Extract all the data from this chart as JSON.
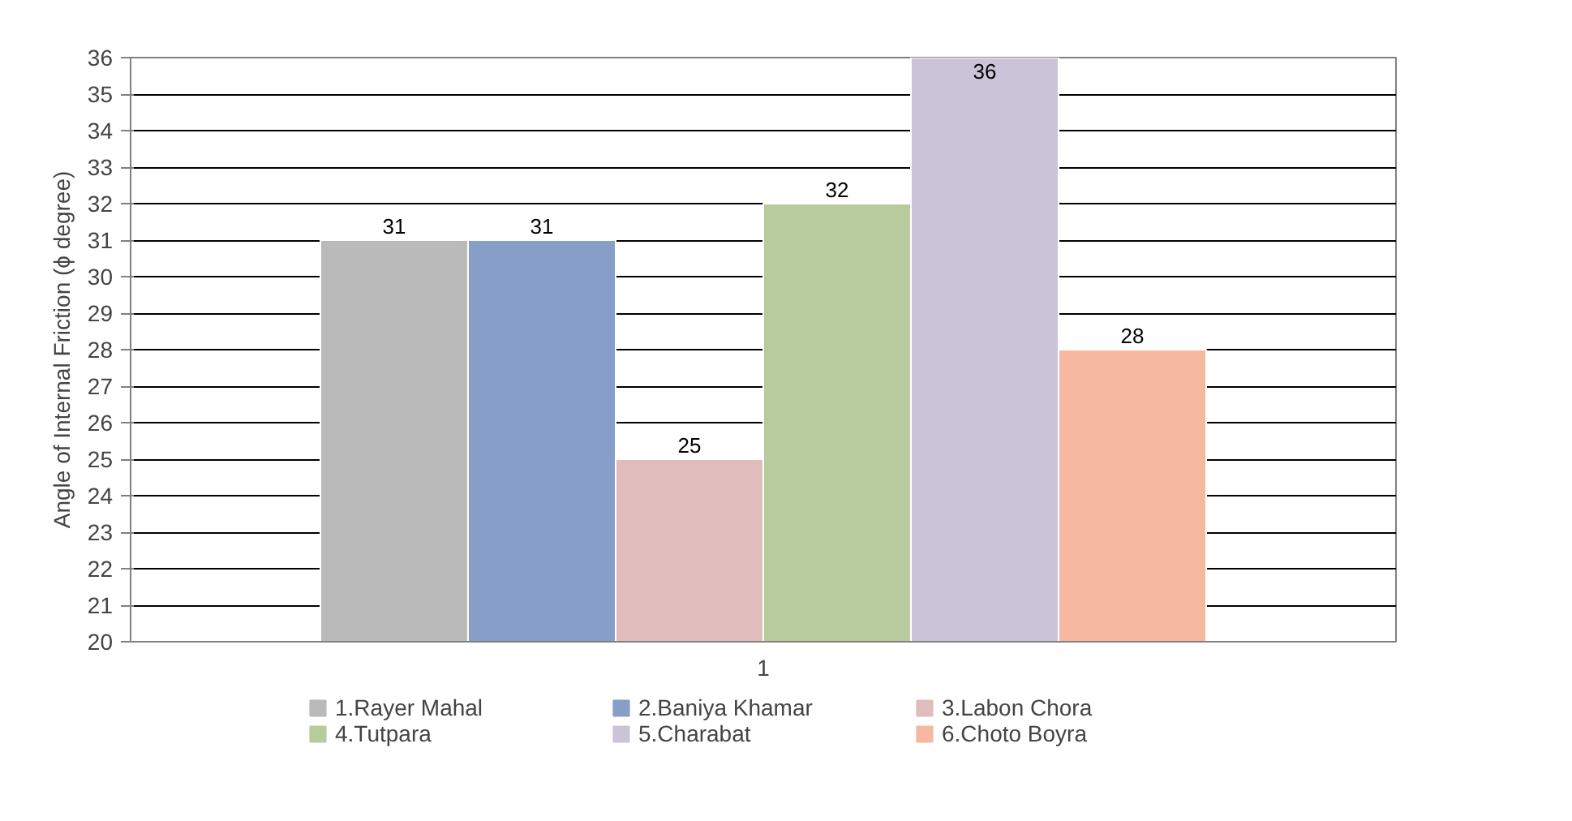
{
  "chart_data": {
    "type": "bar",
    "ylabel": "Angle of Internal Friction (ϕ degree)",
    "categories": [
      "1"
    ],
    "series": [
      {
        "name": "1.Rayer Mahal",
        "color": "#bababa",
        "values": [
          31
        ]
      },
      {
        "name": "2.Baniya Khamar",
        "color": "#879ec8",
        "values": [
          31
        ]
      },
      {
        "name": "3.Labon Chora",
        "color": "#e0bcbc",
        "values": [
          25
        ]
      },
      {
        "name": "4.Tutpara",
        "color": "#b8cb9c",
        "values": [
          32
        ]
      },
      {
        "name": "5.Charabat",
        "color": "#cbc3d8",
        "values": [
          36
        ]
      },
      {
        "name": "6.Choto Boyra",
        "color": "#f7b8a0",
        "values": [
          28
        ]
      }
    ],
    "ylim": [
      20,
      36
    ],
    "yticks": [
      20,
      21,
      22,
      23,
      24,
      25,
      26,
      27,
      28,
      29,
      30,
      31,
      32,
      33,
      34,
      35,
      36
    ],
    "grid": "y",
    "legend": "bottom",
    "data_labels": true
  }
}
